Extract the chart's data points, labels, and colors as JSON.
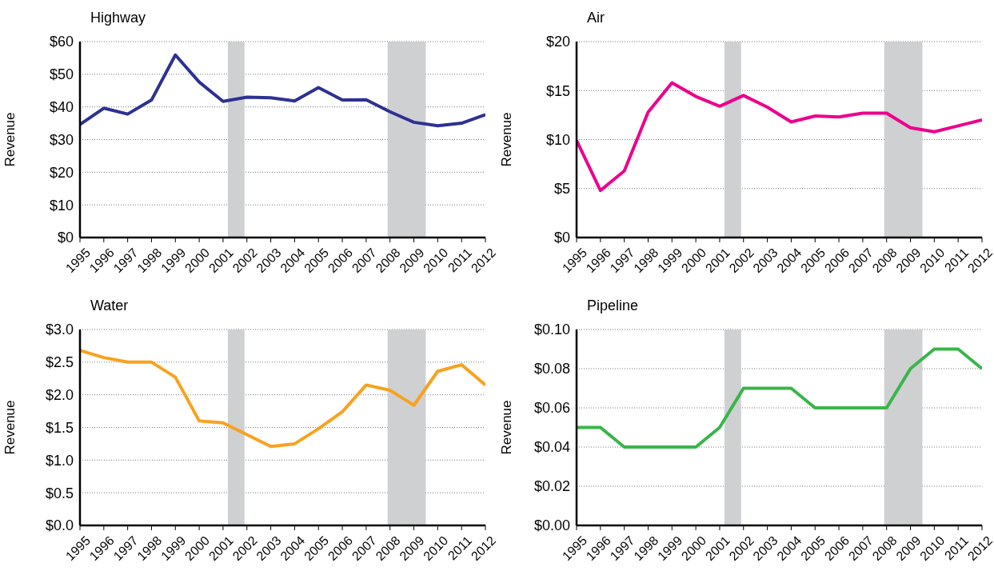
{
  "chart_data": [
    {
      "type": "line",
      "title": "Highway",
      "ylabel": "Revenue",
      "x": [
        1995,
        1996,
        1997,
        1998,
        1999,
        2000,
        2001,
        2002,
        2003,
        2004,
        2005,
        2006,
        2007,
        2008,
        2009,
        2010,
        2011,
        2012
      ],
      "xlim": [
        1995,
        2012
      ],
      "xticks": [
        1995,
        1996,
        1997,
        1998,
        1999,
        2000,
        2001,
        2002,
        2003,
        2004,
        2005,
        2006,
        2007,
        2008,
        2009,
        2010,
        2011,
        2012
      ],
      "ylim": [
        0,
        60
      ],
      "yticks": [
        {
          "value": 0,
          "label": "$0"
        },
        {
          "value": 10,
          "label": "$10"
        },
        {
          "value": 20,
          "label": "$20"
        },
        {
          "value": 30,
          "label": "$30"
        },
        {
          "value": 40,
          "label": "$40"
        },
        {
          "value": 50,
          "label": "$50"
        },
        {
          "value": 60,
          "label": "$60"
        }
      ],
      "grid": "y",
      "bands": [
        {
          "axis": "x",
          "from": 2001.2,
          "to": 2001.9,
          "color": "#cfd0d2"
        },
        {
          "axis": "x",
          "from": 2007.9,
          "to": 2009.5,
          "color": "#cfd0d2"
        }
      ],
      "series": [
        {
          "color": "#2e3192",
          "values": [
            34.6,
            39.6,
            37.8,
            42.1,
            55.9,
            47.6,
            41.7,
            43.0,
            42.8,
            41.8,
            45.9,
            42.1,
            42.2,
            38.5,
            35.3,
            34.2,
            35.0,
            37.6
          ]
        }
      ]
    },
    {
      "type": "line",
      "title": "Air",
      "ylabel": "Revenue",
      "x": [
        1995,
        1996,
        1997,
        1998,
        1999,
        2000,
        2001,
        2002,
        2003,
        2004,
        2005,
        2006,
        2007,
        2008,
        2009,
        2010,
        2011,
        2012
      ],
      "xlim": [
        1995,
        2012
      ],
      "xticks": [
        1995,
        1996,
        1997,
        1998,
        1999,
        2000,
        2001,
        2002,
        2003,
        2004,
        2005,
        2006,
        2007,
        2008,
        2009,
        2010,
        2011,
        2012
      ],
      "ylim": [
        0,
        20
      ],
      "yticks": [
        {
          "value": 0,
          "label": "$0"
        },
        {
          "value": 5,
          "label": "$5"
        },
        {
          "value": 10,
          "label": "$10"
        },
        {
          "value": 15,
          "label": "$15"
        },
        {
          "value": 20,
          "label": "$20"
        }
      ],
      "grid": "y",
      "bands": [
        {
          "axis": "x",
          "from": 2001.2,
          "to": 2001.9,
          "color": "#cfd0d2"
        },
        {
          "axis": "x",
          "from": 2007.9,
          "to": 2009.5,
          "color": "#cfd0d2"
        }
      ],
      "series": [
        {
          "color": "#ec008c",
          "values": [
            9.9,
            4.8,
            6.8,
            12.8,
            15.8,
            14.4,
            13.4,
            14.5,
            13.3,
            11.8,
            12.4,
            12.3,
            12.7,
            12.7,
            11.2,
            10.8,
            11.4,
            12.0
          ]
        }
      ]
    },
    {
      "type": "line",
      "title": "Water",
      "ylabel": "Revenue",
      "x": [
        1995,
        1996,
        1997,
        1998,
        1999,
        2000,
        2001,
        2002,
        2003,
        2004,
        2005,
        2006,
        2007,
        2008,
        2009,
        2010,
        2011,
        2012
      ],
      "xlim": [
        1995,
        2012
      ],
      "xticks": [
        1995,
        1996,
        1997,
        1998,
        1999,
        2000,
        2001,
        2002,
        2003,
        2004,
        2005,
        2006,
        2007,
        2008,
        2009,
        2010,
        2011,
        2012
      ],
      "ylim": [
        0,
        3
      ],
      "yticks": [
        {
          "value": 0,
          "label": "$0.0"
        },
        {
          "value": 0.5,
          "label": "$0.5"
        },
        {
          "value": 1,
          "label": "$1.0"
        },
        {
          "value": 1.5,
          "label": "$1.5"
        },
        {
          "value": 2,
          "label": "$2.0"
        },
        {
          "value": 2.5,
          "label": "$2.5"
        },
        {
          "value": 3,
          "label": "$3.0"
        }
      ],
      "grid": "y",
      "bands": [
        {
          "axis": "x",
          "from": 2001.2,
          "to": 2001.9,
          "color": "#cfd0d2"
        },
        {
          "axis": "x",
          "from": 2007.9,
          "to": 2009.5,
          "color": "#cfd0d2"
        }
      ],
      "series": [
        {
          "color": "#f7a21f",
          "values": [
            2.68,
            2.57,
            2.5,
            2.5,
            2.27,
            1.6,
            1.57,
            1.39,
            1.21,
            1.25,
            1.48,
            1.74,
            2.15,
            2.07,
            1.84,
            2.36,
            2.46,
            2.15
          ]
        }
      ]
    },
    {
      "type": "line",
      "title": "Pipeline",
      "ylabel": "Revenue",
      "x": [
        1995,
        1996,
        1997,
        1998,
        1999,
        2000,
        2001,
        2002,
        2003,
        2004,
        2005,
        2006,
        2007,
        2008,
        2009,
        2010,
        2011,
        2012
      ],
      "xlim": [
        1995,
        2012
      ],
      "xticks": [
        1995,
        1996,
        1997,
        1998,
        1999,
        2000,
        2001,
        2002,
        2003,
        2004,
        2005,
        2006,
        2007,
        2008,
        2009,
        2010,
        2011,
        2012
      ],
      "ylim": [
        0,
        0.1
      ],
      "yticks": [
        {
          "value": 0,
          "label": "$0.00"
        },
        {
          "value": 0.02,
          "label": "$0.02"
        },
        {
          "value": 0.04,
          "label": "$0.04"
        },
        {
          "value": 0.06,
          "label": "$0.06"
        },
        {
          "value": 0.08,
          "label": "$0.08"
        },
        {
          "value": 0.1,
          "label": "$0.10"
        }
      ],
      "grid": "y",
      "bands": [
        {
          "axis": "x",
          "from": 2001.2,
          "to": 2001.9,
          "color": "#cfd0d2"
        },
        {
          "axis": "x",
          "from": 2007.9,
          "to": 2009.5,
          "color": "#cfd0d2"
        }
      ],
      "series": [
        {
          "color": "#39b54a",
          "values": [
            0.05,
            0.05,
            0.04,
            0.04,
            0.04,
            0.04,
            0.05,
            0.07,
            0.07,
            0.07,
            0.06,
            0.06,
            0.06,
            0.06,
            0.08,
            0.09,
            0.09,
            0.08
          ]
        }
      ]
    }
  ]
}
